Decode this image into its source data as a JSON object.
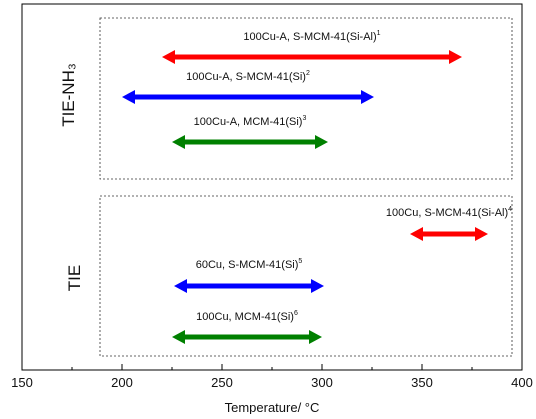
{
  "chart_data": {
    "type": "range",
    "xlabel": "Temperature/ °C",
    "xlim": [
      150,
      400
    ],
    "x_ticks": [
      "150",
      "200",
      "250",
      "300",
      "350",
      "400"
    ],
    "groups": [
      {
        "label": "TIE-NH₃",
        "ranges": [
          {
            "label": "100Cu-A, S-MCM-41(Si-Al)",
            "sup": "1",
            "x_start": 220,
            "x_end": 370,
            "color": "#ff0000"
          },
          {
            "label": "100Cu-A, S-MCM-41(Si)",
            "sup": "2",
            "x_start": 200,
            "x_end": 326,
            "color": "#0000ff"
          },
          {
            "label": "100Cu-A, MCM-41(Si)",
            "sup": "3",
            "x_start": 225,
            "x_end": 303,
            "color": "#008000"
          }
        ]
      },
      {
        "label": "TIE",
        "ranges": [
          {
            "label": "100Cu, S-MCM-41(Si-Al)",
            "sup": "4",
            "x_start": 344,
            "x_end": 383,
            "color": "#ff0000"
          },
          {
            "label": "60Cu, S-MCM-41(Si)",
            "sup": "5",
            "x_start": 226,
            "x_end": 301,
            "color": "#0000ff"
          },
          {
            "label": "100Cu, MCM-41(Si)",
            "sup": "6",
            "x_start": 225,
            "x_end": 300,
            "color": "#008000"
          }
        ]
      }
    ]
  }
}
